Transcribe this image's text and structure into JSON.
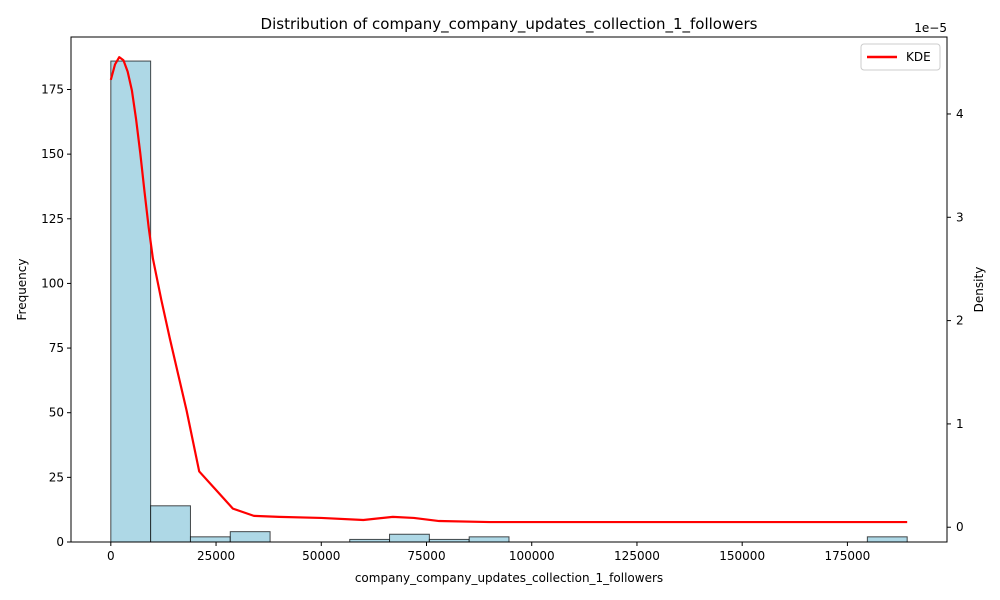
{
  "chart_data": {
    "type": "bar",
    "title": "Distribution of company_company_updates_collection_1_followers",
    "xlabel": "company_company_updates_collection_1_followers",
    "ylabel": "Frequency",
    "y2label": "Density",
    "y2_offset_text": "1e−5",
    "xlim": [
      -9460,
      198660
    ],
    "ylim": [
      0,
      195.3
    ],
    "y2lim": [
      -1.43e-06,
      4.745e-05
    ],
    "grid": false,
    "legend_position": "top-right",
    "x_ticks": [
      0,
      25000,
      50000,
      75000,
      100000,
      125000,
      150000,
      175000
    ],
    "y_ticks": [
      0,
      25,
      50,
      75,
      100,
      125,
      150,
      175
    ],
    "y2_ticks": [
      0,
      1e-05,
      2e-05,
      3e-05,
      4e-05
    ],
    "y2_tick_labels": [
      "0",
      "1",
      "2",
      "3",
      "4"
    ],
    "bins": {
      "start": 0,
      "width": 9460,
      "counts": [
        186,
        14,
        2,
        4,
        0,
        0,
        1,
        3,
        1,
        2,
        0,
        0,
        0,
        0,
        0,
        0,
        0,
        0,
        0,
        2
      ]
    },
    "series": [
      {
        "name": "KDE",
        "x": [
          0,
          1000,
          2000,
          3000,
          4000,
          5000,
          6000,
          7000,
          8000,
          9000,
          10000,
          12000,
          14000,
          16000,
          18000,
          21000,
          25000,
          29000,
          34000,
          40000,
          50000,
          60000,
          67000,
          72000,
          78000,
          90000,
          110000,
          140000,
          170000,
          189200
        ],
        "y": [
          4.33e-05,
          4.48e-05,
          4.55e-05,
          4.52e-05,
          4.41e-05,
          4.23e-05,
          3.95e-05,
          3.62e-05,
          3.25e-05,
          2.9e-05,
          2.6e-05,
          2.2e-05,
          1.83e-05,
          1.48e-05,
          1.13e-05,
          5.4e-06,
          3.6e-06,
          1.8e-06,
          1.1e-06,
          1e-06,
          9e-07,
          7e-07,
          1e-06,
          9e-07,
          6e-07,
          5e-07,
          5e-07,
          5e-07,
          5e-07,
          5e-07
        ]
      }
    ],
    "colors": {
      "bar_fill": "#add8e6",
      "bar_edge": "#000000",
      "kde_line": "#ff0000"
    }
  }
}
